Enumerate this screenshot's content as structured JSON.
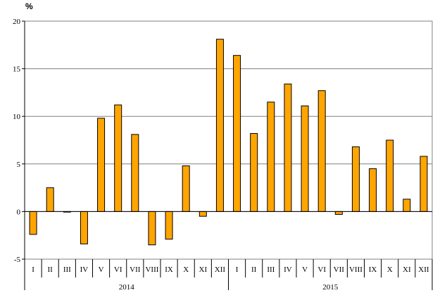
{
  "chart_data": {
    "type": "bar",
    "ylabel": "%",
    "ylim": [
      -5,
      20
    ],
    "yticks": [
      -5,
      0,
      5,
      10,
      15,
      20
    ],
    "grid": true,
    "categories": [
      "I",
      "II",
      "III",
      "IV",
      "V",
      "VI",
      "VII",
      "VIII",
      "IX",
      "X",
      "XI",
      "XII",
      "I",
      "II",
      "III",
      "IV",
      "V",
      "VI",
      "VII",
      "VIII",
      "IX",
      "X",
      "XI",
      "XII"
    ],
    "groups": [
      {
        "label": "2014",
        "count": 12
      },
      {
        "label": "2015",
        "count": 12
      }
    ],
    "values": [
      -2.4,
      2.5,
      0.0,
      -3.4,
      9.8,
      11.2,
      8.1,
      -3.5,
      -2.9,
      4.8,
      -0.5,
      18.1,
      16.4,
      8.2,
      11.5,
      13.4,
      11.1,
      12.7,
      -0.3,
      6.8,
      4.5,
      7.5,
      1.3,
      5.8
    ],
    "colors": {
      "bar": "#FFA500",
      "stroke": "#000000",
      "grid": "#808080"
    }
  }
}
